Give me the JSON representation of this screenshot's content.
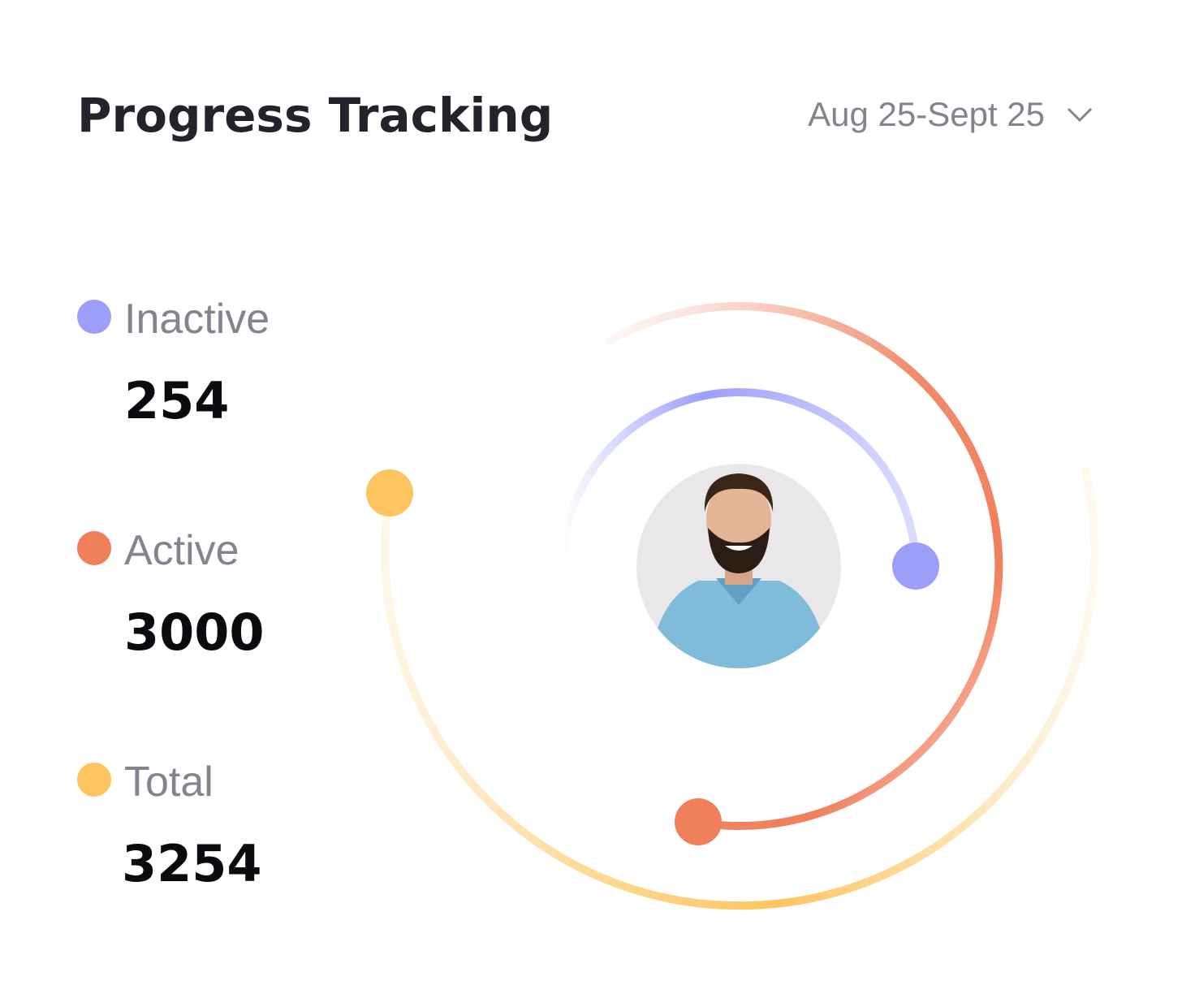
{
  "header": {
    "title": "Progress Tracking",
    "date_range": "Aug 25-Sept 25"
  },
  "legend": [
    {
      "label": "Inactive",
      "value": 254,
      "color": "#9b9ffa"
    },
    {
      "label": "Active",
      "value": 3000,
      "color": "#f07f5b"
    },
    {
      "label": "Total",
      "value": 3254,
      "color": "#fec55e"
    }
  ]
}
